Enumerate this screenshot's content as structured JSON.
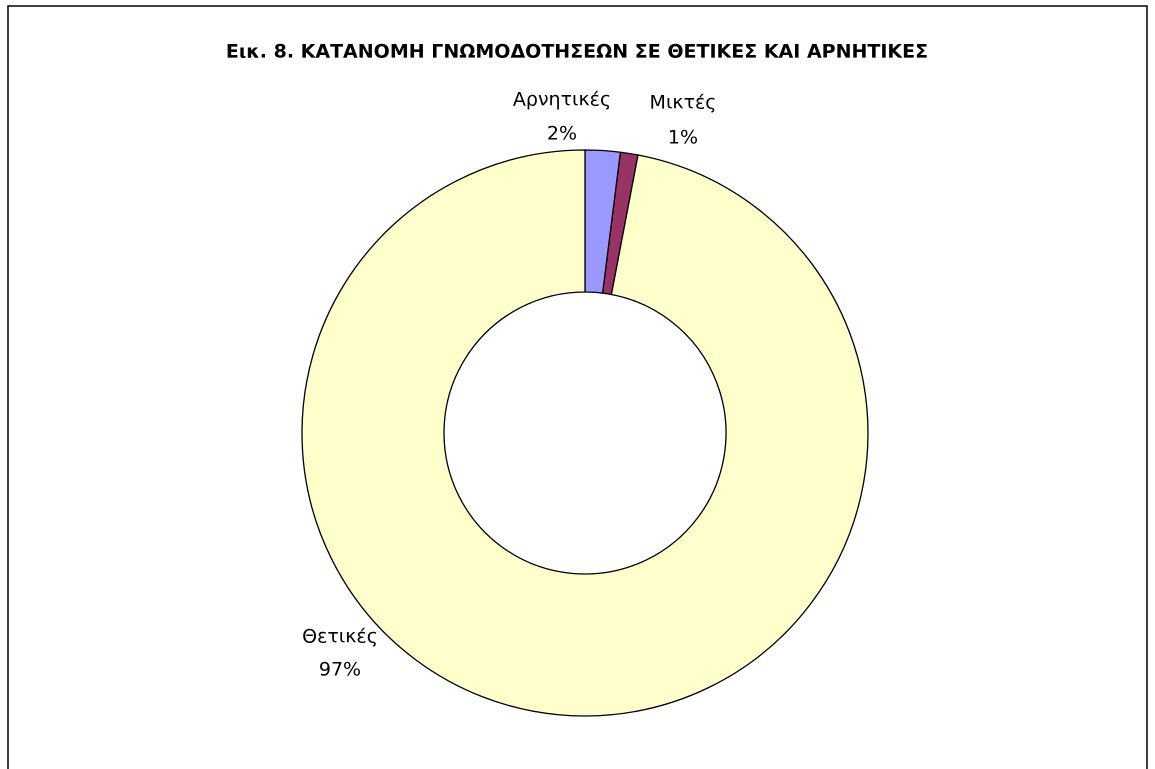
{
  "chart_data": {
    "type": "donut",
    "title": "Εικ. 8. ΚΑΤΑΝΟΜΗ ΓΝΩΜΟΔΟΤΗΣΕΩΝ ΣΕ ΘΕΤΙΚΕΣ ΚΑΙ ΑΡΝΗΤΙΚΕΣ",
    "categories": [
      "Αρνητικές",
      "Μικτές",
      "Θετικές"
    ],
    "values": [
      2,
      1,
      97
    ],
    "value_labels": [
      "2%",
      "1%",
      "97%"
    ],
    "colors": [
      "#9999ff",
      "#993366",
      "#ffffcc"
    ]
  }
}
